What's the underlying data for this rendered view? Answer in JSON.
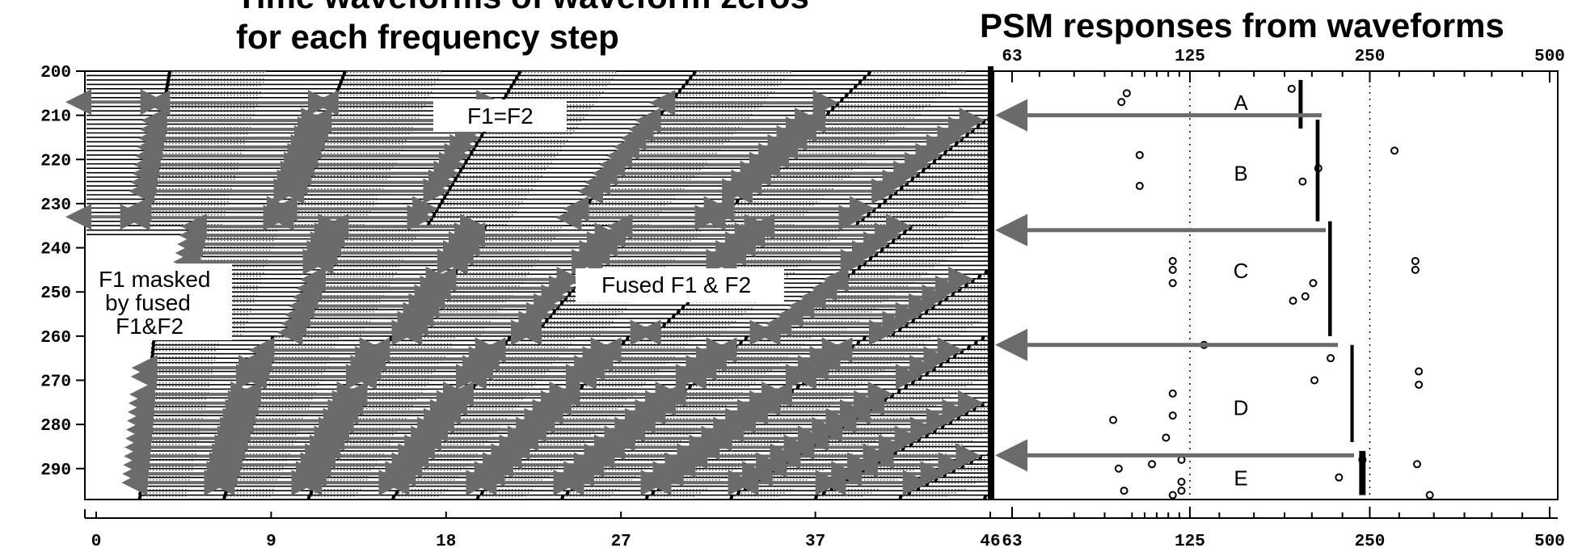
{
  "titles": {
    "left_line1": "Time waveforms of waveform zeros",
    "left_line2": "for each frequency step",
    "right": "PSM responses from waveforms"
  },
  "annotations": {
    "f1_eq_f2": "F1=F2",
    "fused": "Fused F1 & F2",
    "masked_line1": "F1 masked",
    "masked_line2": "by fused",
    "masked_line3": "F1&F2"
  },
  "chart_data": [
    {
      "type": "waveform-zeros",
      "title": "Time waveforms of waveform zeros for each frequency step",
      "y_ticks": [
        "200",
        "210",
        "220",
        "230",
        "240",
        "250",
        "260",
        "270",
        "280",
        "290"
      ],
      "y_range": [
        200,
        297
      ],
      "x_ticks": [
        "0",
        "9",
        "18",
        "27",
        "37",
        "46"
      ],
      "x_tick_values": [
        0,
        9,
        18,
        27,
        37,
        46
      ],
      "x_range": [
        -0.5,
        46
      ],
      "rows_per_step": 1,
      "colors": {
        "arrow": "#6b6b6b",
        "trace": "#000000",
        "dots": "#d9d9d9"
      }
    },
    {
      "type": "scatter",
      "title": "PSM responses from waveforms",
      "x_scale": "log",
      "x_ticks": [
        "63",
        "125",
        "250",
        "500"
      ],
      "x_tick_values": [
        63,
        125,
        250,
        500
      ],
      "x_range": [
        63,
        500
      ],
      "y_range": [
        200,
        297
      ],
      "regions": [
        "A",
        "B",
        "C",
        "D",
        "E"
      ],
      "region_y": [
        207,
        223,
        245,
        276,
        292
      ],
      "arrow_y": [
        210,
        236,
        262,
        287
      ],
      "scatter": [
        {
          "x": 98,
          "y": 205
        },
        {
          "x": 96,
          "y": 207
        },
        {
          "x": 185,
          "y": 204
        },
        {
          "x": 103,
          "y": 219
        },
        {
          "x": 103,
          "y": 226
        },
        {
          "x": 193,
          "y": 225
        },
        {
          "x": 205,
          "y": 222
        },
        {
          "x": 275,
          "y": 218
        },
        {
          "x": 117,
          "y": 243
        },
        {
          "x": 117,
          "y": 245
        },
        {
          "x": 117,
          "y": 248
        },
        {
          "x": 201,
          "y": 248
        },
        {
          "x": 195,
          "y": 251
        },
        {
          "x": 186,
          "y": 252
        },
        {
          "x": 298,
          "y": 243
        },
        {
          "x": 298,
          "y": 245
        },
        {
          "x": 132,
          "y": 262
        },
        {
          "x": 202,
          "y": 270
        },
        {
          "x": 215,
          "y": 265
        },
        {
          "x": 302,
          "y": 268
        },
        {
          "x": 302,
          "y": 271
        },
        {
          "x": 117,
          "y": 273
        },
        {
          "x": 117,
          "y": 278
        },
        {
          "x": 114,
          "y": 283
        },
        {
          "x": 93,
          "y": 279
        },
        {
          "x": 121,
          "y": 288
        },
        {
          "x": 121,
          "y": 293
        },
        {
          "x": 121,
          "y": 295
        },
        {
          "x": 117,
          "y": 296
        },
        {
          "x": 108,
          "y": 289
        },
        {
          "x": 95,
          "y": 290
        },
        {
          "x": 97,
          "y": 295
        },
        {
          "x": 222,
          "y": 292
        },
        {
          "x": 243,
          "y": 288
        },
        {
          "x": 300,
          "y": 289
        },
        {
          "x": 315,
          "y": 296
        }
      ],
      "traces": [
        {
          "x0": 190,
          "x1": 193,
          "y0": 202,
          "y1": 213
        },
        {
          "x0": 203,
          "x1": 206,
          "y0": 211,
          "y1": 234
        },
        {
          "x0": 213,
          "x1": 216,
          "y0": 234,
          "y1": 260
        },
        {
          "x0": 232,
          "x1": 235,
          "y0": 262,
          "y1": 284
        },
        {
          "x0": 240,
          "x1": 246,
          "y0": 286,
          "y1": 296
        }
      ],
      "colors": {
        "arrow": "#6b6b6b"
      }
    }
  ]
}
